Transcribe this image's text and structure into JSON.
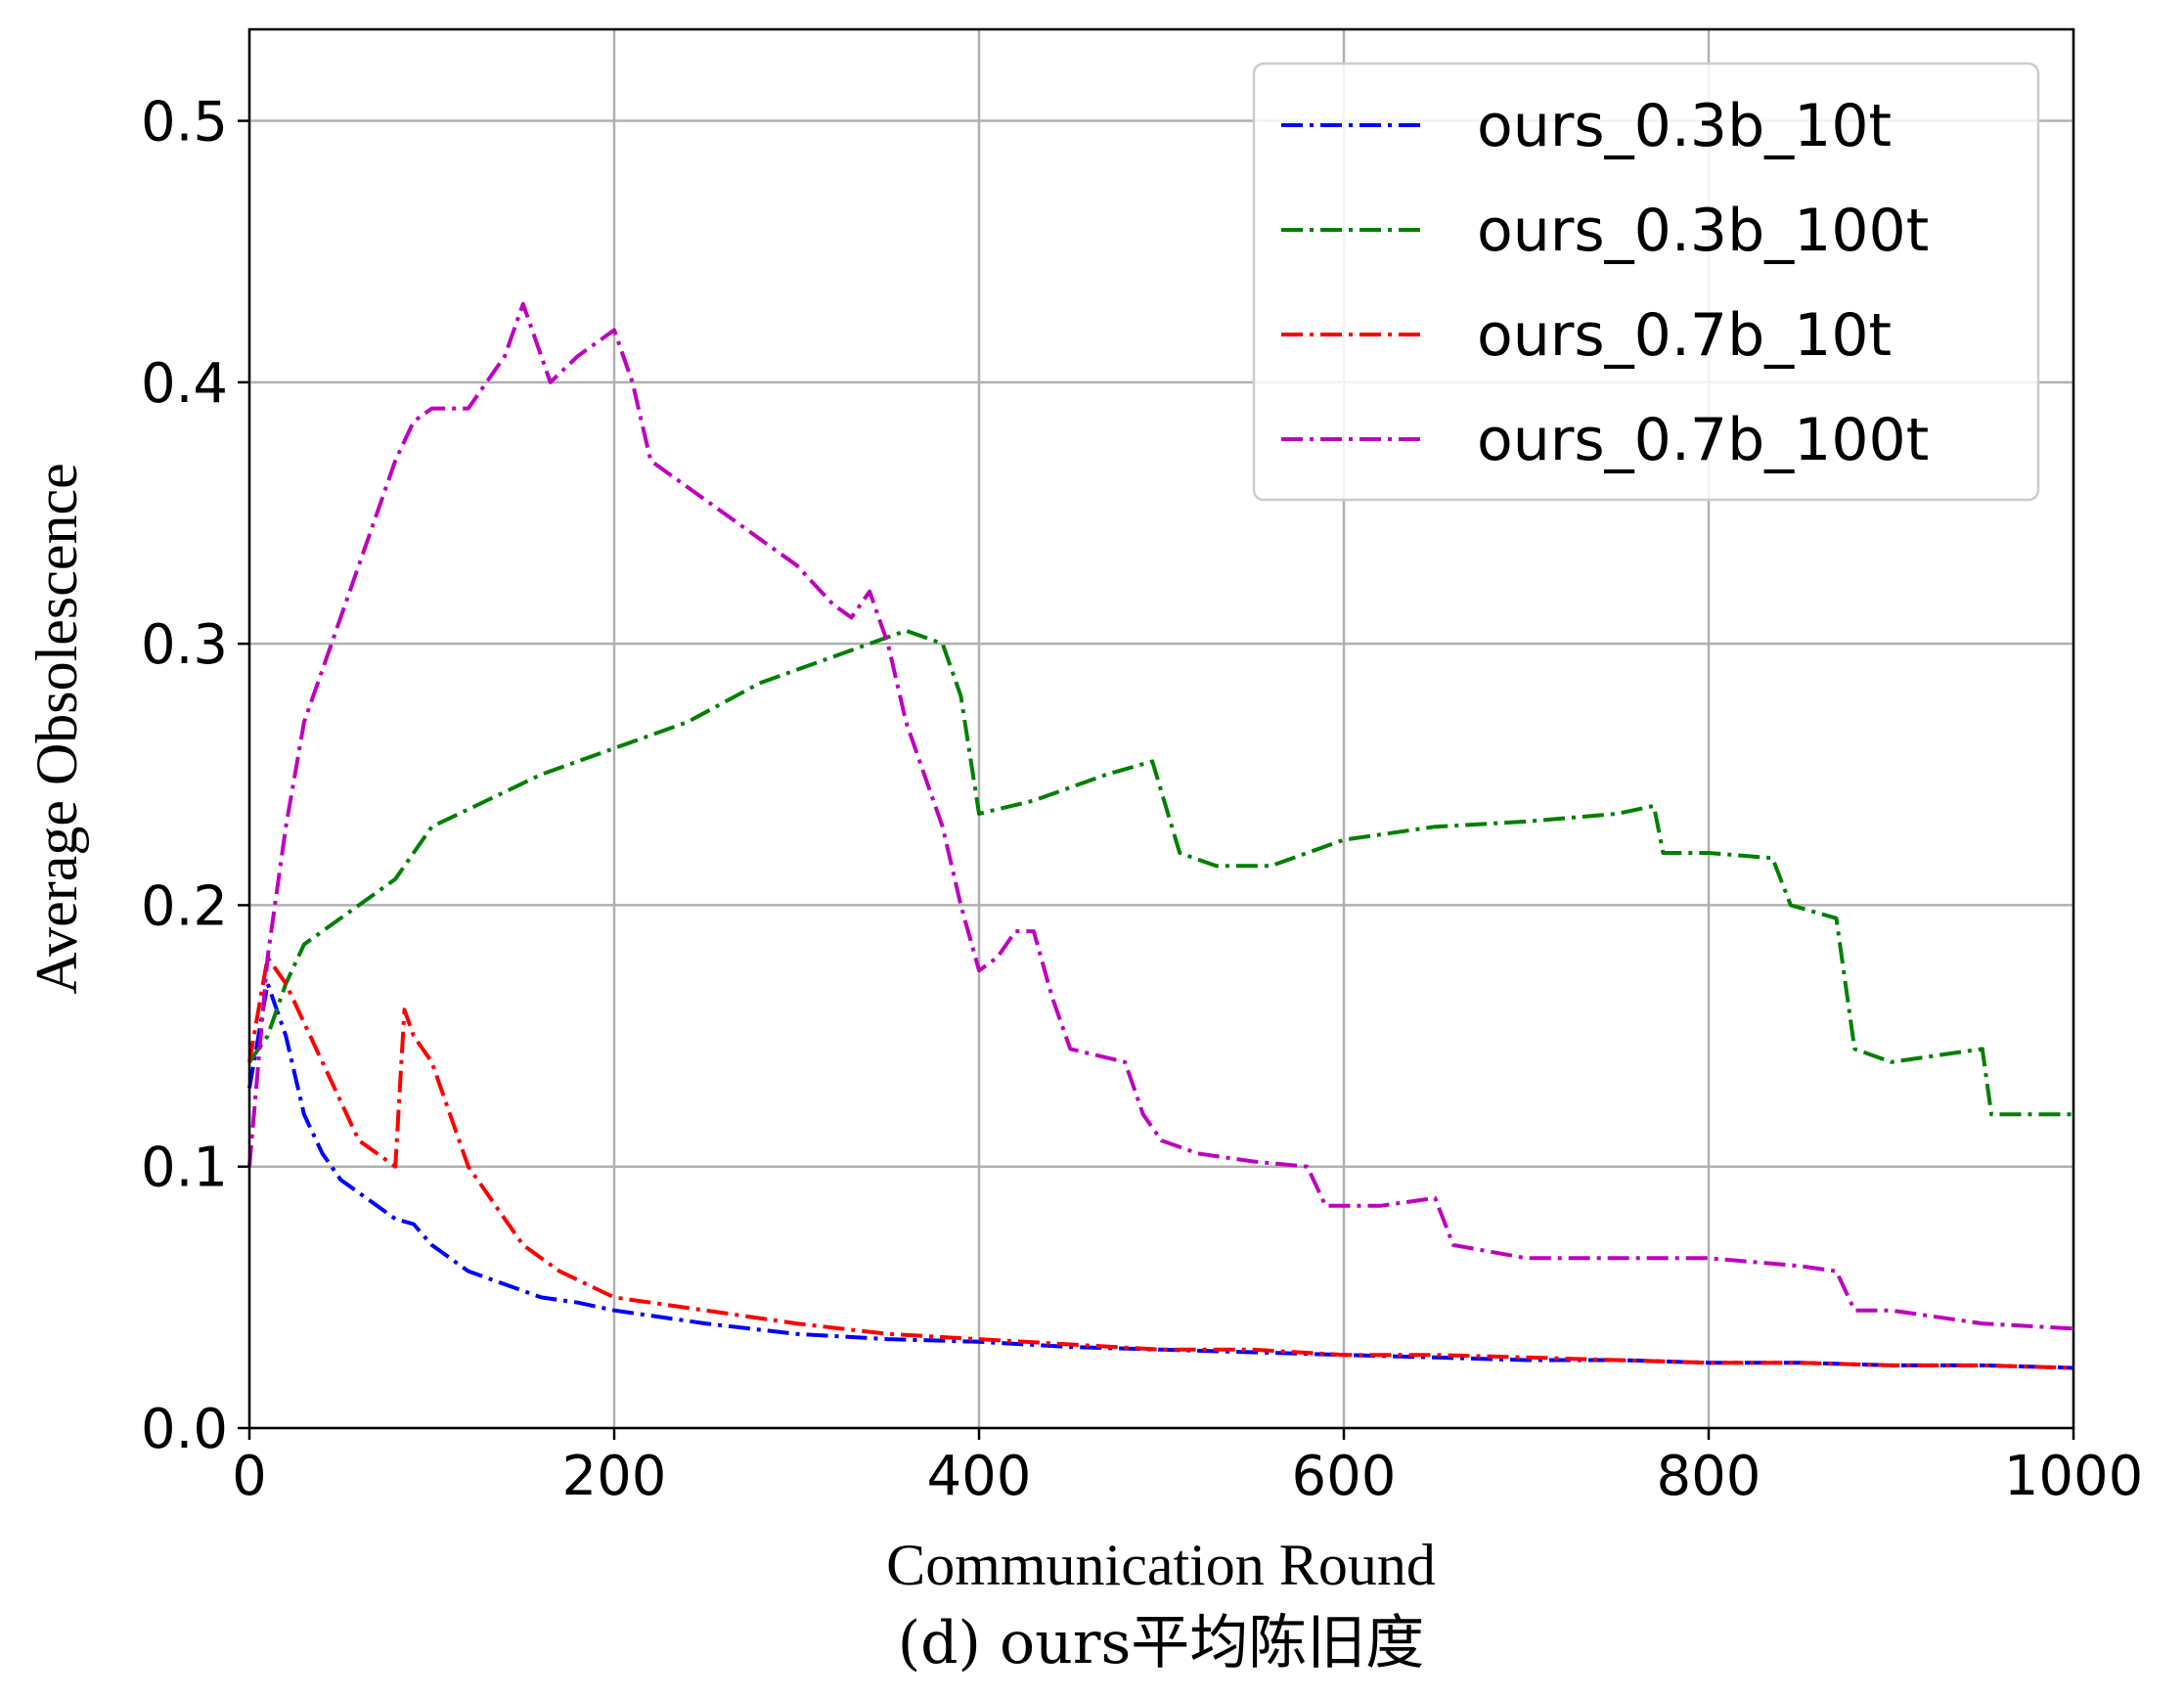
{
  "chart_data": {
    "type": "line",
    "title": "",
    "caption": "(d) ours平均陈旧度",
    "xlabel": "Communication Round",
    "ylabel": "Average Obsolescence",
    "xlim": [
      0,
      1000
    ],
    "ylim": [
      0,
      0.535
    ],
    "xticks": [
      0,
      200,
      400,
      600,
      800,
      1000
    ],
    "yticks": [
      0.0,
      0.1,
      0.2,
      0.3,
      0.4,
      0.5
    ],
    "xtick_labels": [
      "0",
      "200",
      "400",
      "600",
      "800",
      "1000"
    ],
    "ytick_labels": [
      "0.0",
      "0.1",
      "0.2",
      "0.3",
      "0.4",
      "0.5"
    ],
    "grid": true,
    "legend_position": "top-right",
    "series": [
      {
        "name": "ours_0.3b_10t",
        "color": "#0000ff",
        "x": [
          0,
          10,
          20,
          30,
          40,
          50,
          60,
          70,
          80,
          90,
          100,
          120,
          140,
          160,
          180,
          200,
          250,
          300,
          350,
          400,
          450,
          500,
          550,
          600,
          650,
          700,
          750,
          800,
          850,
          900,
          950,
          1000
        ],
        "y": [
          0.13,
          0.17,
          0.15,
          0.12,
          0.105,
          0.095,
          0.09,
          0.085,
          0.08,
          0.078,
          0.07,
          0.06,
          0.055,
          0.05,
          0.048,
          0.045,
          0.04,
          0.036,
          0.034,
          0.033,
          0.031,
          0.03,
          0.029,
          0.028,
          0.027,
          0.026,
          0.026,
          0.025,
          0.025,
          0.024,
          0.024,
          0.023
        ]
      },
      {
        "name": "ours_0.3b_100t",
        "color": "#008000",
        "x": [
          0,
          10,
          20,
          30,
          50,
          80,
          100,
          130,
          160,
          200,
          240,
          280,
          320,
          340,
          360,
          380,
          390,
          400,
          430,
          470,
          495,
          510,
          530,
          560,
          600,
          650,
          700,
          750,
          770,
          775,
          800,
          835,
          845,
          870,
          880,
          900,
          950,
          955,
          1000
        ],
        "y": [
          0.14,
          0.15,
          0.17,
          0.185,
          0.195,
          0.21,
          0.23,
          0.24,
          0.25,
          0.26,
          0.27,
          0.285,
          0.295,
          0.3,
          0.305,
          0.3,
          0.28,
          0.235,
          0.24,
          0.25,
          0.255,
          0.22,
          0.215,
          0.215,
          0.225,
          0.23,
          0.232,
          0.235,
          0.238,
          0.22,
          0.22,
          0.218,
          0.2,
          0.195,
          0.145,
          0.14,
          0.145,
          0.12,
          0.12
        ]
      },
      {
        "name": "ours_0.7b_10t",
        "color": "#ff0000",
        "x": [
          0,
          10,
          20,
          30,
          40,
          50,
          60,
          70,
          80,
          85,
          90,
          100,
          110,
          120,
          130,
          140,
          150,
          170,
          200,
          250,
          300,
          350,
          400,
          450,
          500,
          550,
          600,
          650,
          700,
          750,
          800,
          850,
          900,
          950,
          1000
        ],
        "y": [
          0.14,
          0.18,
          0.17,
          0.155,
          0.14,
          0.125,
          0.11,
          0.105,
          0.1,
          0.16,
          0.15,
          0.14,
          0.12,
          0.1,
          0.09,
          0.08,
          0.07,
          0.06,
          0.05,
          0.045,
          0.04,
          0.036,
          0.034,
          0.032,
          0.03,
          0.03,
          0.028,
          0.028,
          0.027,
          0.026,
          0.025,
          0.025,
          0.024,
          0.024,
          0.023
        ]
      },
      {
        "name": "ours_0.7b_100t",
        "color": "#bf00bf",
        "x": [
          0,
          10,
          20,
          30,
          40,
          60,
          80,
          90,
          100,
          120,
          140,
          150,
          155,
          165,
          180,
          200,
          210,
          220,
          240,
          260,
          280,
          300,
          320,
          330,
          340,
          350,
          360,
          370,
          380,
          390,
          400,
          410,
          420,
          430,
          440,
          450,
          480,
          490,
          500,
          520,
          550,
          580,
          590,
          620,
          650,
          660,
          700,
          750,
          800,
          850,
          870,
          880,
          900,
          950,
          1000
        ],
        "y": [
          0.1,
          0.18,
          0.23,
          0.27,
          0.29,
          0.33,
          0.37,
          0.385,
          0.39,
          0.39,
          0.41,
          0.43,
          0.42,
          0.4,
          0.41,
          0.42,
          0.4,
          0.37,
          0.36,
          0.35,
          0.34,
          0.33,
          0.315,
          0.31,
          0.32,
          0.3,
          0.27,
          0.25,
          0.23,
          0.2,
          0.175,
          0.18,
          0.19,
          0.19,
          0.165,
          0.145,
          0.14,
          0.12,
          0.11,
          0.105,
          0.102,
          0.1,
          0.085,
          0.085,
          0.088,
          0.07,
          0.065,
          0.065,
          0.065,
          0.062,
          0.06,
          0.045,
          0.045,
          0.04,
          0.038
        ]
      }
    ]
  }
}
